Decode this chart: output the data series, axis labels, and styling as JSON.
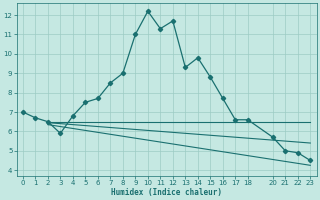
{
  "xlabel": "Humidex (Indice chaleur)",
  "ylabel": "",
  "background_color": "#c5e8e2",
  "grid_color": "#9dccc4",
  "line_color": "#1a7070",
  "xlim": [
    -0.5,
    23.5
  ],
  "ylim": [
    3.7,
    12.6
  ],
  "xticks": [
    0,
    1,
    2,
    3,
    4,
    5,
    6,
    7,
    8,
    9,
    10,
    11,
    12,
    13,
    14,
    15,
    16,
    17,
    18,
    20,
    21,
    22,
    23
  ],
  "yticks": [
    4,
    5,
    6,
    7,
    8,
    9,
    10,
    11,
    12
  ],
  "curve1_x": [
    0,
    1,
    2,
    3,
    4,
    5,
    6,
    7,
    8,
    9,
    10,
    11,
    12,
    13,
    14,
    15,
    16,
    17,
    18,
    20,
    21,
    22,
    23
  ],
  "curve1_y": [
    7.0,
    6.7,
    6.5,
    5.9,
    6.8,
    7.5,
    7.7,
    8.5,
    9.0,
    11.0,
    12.2,
    11.3,
    11.7,
    9.3,
    9.8,
    8.8,
    7.7,
    6.6,
    6.6,
    5.7,
    5.0,
    4.9,
    4.5
  ],
  "curve2_x": [
    2,
    3,
    4,
    5,
    6,
    7,
    8,
    9,
    10,
    11,
    12,
    13,
    14,
    15,
    16,
    17,
    18,
    20,
    21,
    22,
    23
  ],
  "curve2_y": [
    6.5,
    6.5,
    6.5,
    6.5,
    6.5,
    6.5,
    6.5,
    6.5,
    6.5,
    6.5,
    6.5,
    6.5,
    6.5,
    6.5,
    6.5,
    6.5,
    6.5,
    6.5,
    6.5,
    6.5,
    6.5
  ],
  "curve3_x": [
    2,
    3,
    4,
    5,
    6,
    7,
    8,
    9,
    10,
    11,
    12,
    13,
    14,
    15,
    16,
    17,
    18,
    20,
    21,
    22,
    23
  ],
  "curve3_y": [
    6.35,
    6.25,
    6.15,
    6.05,
    5.95,
    5.85,
    5.75,
    5.65,
    5.55,
    5.45,
    5.35,
    5.25,
    5.15,
    5.05,
    4.95,
    4.85,
    4.75,
    4.55,
    4.45,
    4.35,
    4.25
  ],
  "curve4_x": [
    2,
    3,
    4,
    5,
    6,
    7,
    8,
    9,
    10,
    11,
    12,
    13,
    14,
    15,
    16,
    17,
    18,
    20,
    21,
    22,
    23
  ],
  "curve4_y": [
    6.45,
    6.4,
    6.35,
    6.3,
    6.25,
    6.2,
    6.15,
    6.1,
    6.05,
    6.0,
    5.95,
    5.9,
    5.85,
    5.8,
    5.75,
    5.7,
    5.65,
    5.55,
    5.5,
    5.45,
    5.4
  ]
}
